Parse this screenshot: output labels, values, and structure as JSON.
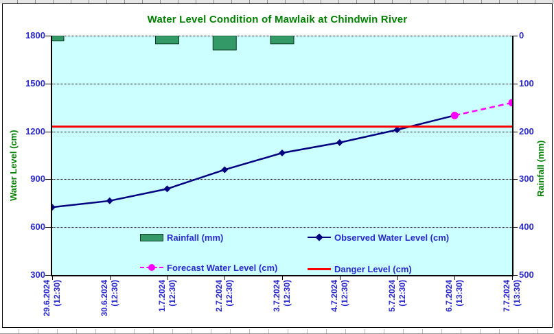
{
  "chart_data": {
    "type": "line+bar",
    "title": "Water Level Condition of Mawlaik at Chindwin River",
    "x_labels": [
      {
        "date": "29.6.2024",
        "time": "(12:30)"
      },
      {
        "date": "30.6.2024",
        "time": "(12:30)"
      },
      {
        "date": "1.7.2024",
        "time": "(12:30)"
      },
      {
        "date": "2.7.2024",
        "time": "(12:30)"
      },
      {
        "date": "3.7.2024",
        "time": "(12:30)"
      },
      {
        "date": "4.7.2024",
        "time": "(12:30)"
      },
      {
        "date": "5.7.2024",
        "time": "(12:30)"
      },
      {
        "date": "6.7.2024",
        "time": "(13:30)"
      },
      {
        "date": "7.7.2024",
        "time": "(13:30)"
      }
    ],
    "left_axis": {
      "title": "Water Level (cm)",
      "min": 300,
      "max": 1800,
      "ticks": [
        1800,
        1500,
        1200,
        900,
        600,
        300
      ]
    },
    "right_axis": {
      "title": "Rainfall (mm)",
      "min": 0,
      "max": 500,
      "ticks": [
        0,
        100,
        200,
        300,
        400,
        500
      ]
    },
    "series": [
      {
        "name": "Rainfall (mm)",
        "type": "bar",
        "axis": "right",
        "color": "#339966",
        "border_color": "#0b3a22",
        "values": [
          11,
          null,
          17,
          30,
          17,
          null,
          null,
          null,
          null
        ]
      },
      {
        "name": "Observed Water Level (cm)",
        "type": "line",
        "axis": "left",
        "color": "#000080",
        "marker": "diamond",
        "values": [
          725,
          765,
          840,
          960,
          1065,
          1130,
          1210,
          1300,
          null
        ]
      },
      {
        "name": "Forecast Water Level (cm)",
        "type": "line",
        "style": "dashed",
        "axis": "left",
        "color": "#FF00FF",
        "marker": "circle",
        "values": [
          null,
          null,
          null,
          null,
          null,
          null,
          null,
          1300,
          1380
        ]
      },
      {
        "name": "Danger Level (cm)",
        "type": "hline",
        "axis": "left",
        "color": "#FF0000",
        "value": 1230
      }
    ],
    "legend_position": "inside-bottom",
    "grid": "horizontal-dotted",
    "colors": {
      "plot_bg": "#CCFFFF",
      "axis_text": "#2929CC",
      "title_text": "#008000",
      "gridline": "#000000"
    }
  }
}
